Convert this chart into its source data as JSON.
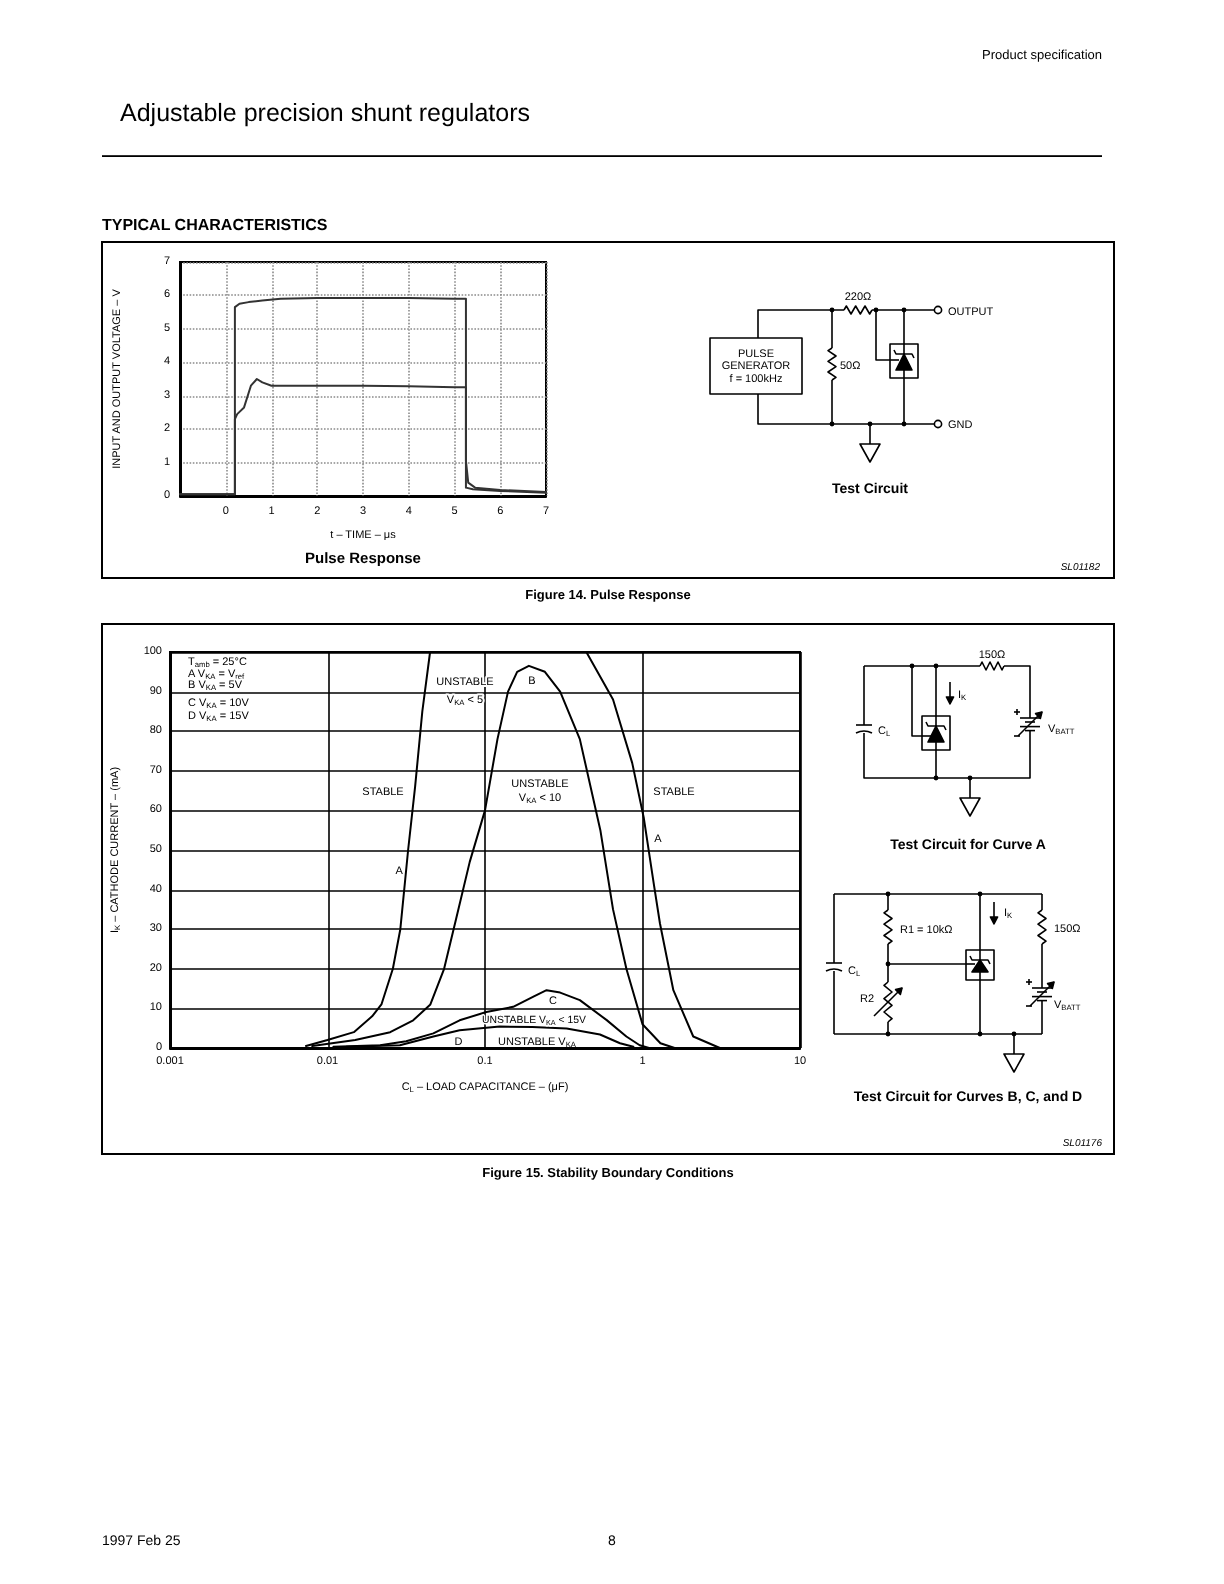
{
  "chart_data": [
    {
      "type": "line",
      "title": "Pulse Response",
      "xlabel": "t – TIME – μs",
      "ylabel": "INPUT AND OUTPUT VOLTAGE – V",
      "xlim": [
        -1,
        7
      ],
      "xticks": [
        0,
        1,
        2,
        3,
        4,
        5,
        6,
        7
      ],
      "ylim": [
        0,
        7
      ],
      "yticks": [
        0,
        1,
        2,
        3,
        4,
        5,
        6,
        7
      ],
      "grid": true,
      "line_style": "solid",
      "series": [
        {
          "color": "#333333",
          "x": [
            -1,
            0.2,
            0.2,
            0.3,
            0.5,
            0.8,
            1.2,
            2,
            3,
            4,
            5,
            5.25,
            5.25,
            5.4,
            6,
            7
          ],
          "values": [
            0.05,
            0.05,
            5.65,
            5.75,
            5.8,
            5.85,
            5.9,
            5.92,
            5.92,
            5.92,
            5.9,
            5.9,
            0.25,
            0.2,
            0.15,
            0.1
          ]
        },
        {
          "color": "#333333",
          "x": [
            -1,
            0.2,
            0.2,
            0.25,
            0.4,
            0.55,
            0.68,
            0.8,
            1,
            2,
            3,
            4,
            5,
            5.25,
            5.25,
            5.3,
            5.45,
            6,
            7
          ],
          "values": [
            0.05,
            0.05,
            2.3,
            2.45,
            2.65,
            3.3,
            3.5,
            3.4,
            3.3,
            3.3,
            3.3,
            3.28,
            3.25,
            3.25,
            1.05,
            0.4,
            0.25,
            0.18,
            0.12
          ]
        }
      ],
      "annotations": [
        "Product specification",
        "Adjustable precision shunt regulators",
        "TYPICAL CHARACTERISTICS",
        "SL01182",
        "Figure 14. Pulse Response"
      ]
    },
    {
      "type": "other",
      "title": "Test Circuit",
      "annotations": [
        "220Ω",
        "OUTPUT",
        "PULSE",
        "GENERATOR",
        "f = 100kHz",
        "50Ω",
        "GND"
      ]
    },
    {
      "type": "line",
      "title": "Figure 15. Stability Boundary Conditions",
      "xlabel": "C$_{L}$ – LOAD CAPACITANCE – (μF)",
      "ylabel": "I$_{K}$ – CATHODE CURRENT – (mA)",
      "log": "x",
      "xlim": [
        0.001,
        10
      ],
      "xticks": [
        0.001,
        0.01,
        0.1,
        1,
        10
      ],
      "ylim": [
        0,
        100
      ],
      "yticks": [
        0,
        10,
        20,
        30,
        40,
        50,
        60,
        70,
        80,
        90,
        100
      ],
      "grid": true,
      "line_style": "solid",
      "series": [
        {
          "color": "#000000",
          "x": [
            0.0073,
            0.01,
            0.0147,
            0.0192,
            0.022,
            0.026,
            0.029,
            0.0325,
            0.036,
            0.04,
            0.0448,
            0.44,
            0.65,
            0.86,
            1.02,
            1.18,
            1.29,
            1.57,
            2.1,
            3.1
          ],
          "values": [
            0.5,
            2,
            4,
            8,
            11,
            20,
            30,
            50,
            66,
            85,
            100,
            100,
            88,
            72,
            58,
            41.4,
            31.5,
            14.6,
            2.9,
            0
          ]
        },
        {
          "color": "#000000",
          "x": [
            0.008,
            0.015,
            0.025,
            0.035,
            0.045,
            0.055,
            0.065,
            0.08,
            0.1,
            0.12,
            0.14,
            0.16,
            0.19,
            0.24,
            0.3,
            0.4,
            0.54,
            0.65,
            0.79,
            1,
            1.3,
            1.6
          ],
          "values": [
            0.5,
            2,
            4,
            7,
            11,
            20,
            32,
            47,
            60,
            78,
            90,
            95,
            96.5,
            95,
            90,
            78,
            55,
            35,
            20,
            6,
            1.2,
            0
          ]
        },
        {
          "color": "#000000",
          "x": [
            0.0109,
            0.0216,
            0.0316,
            0.047,
            0.069,
            0.102,
            0.151,
            0.203,
            0.246,
            0.3,
            0.4,
            0.59,
            0.79,
            0.96,
            1.1
          ],
          "values": [
            0.3,
            0.7,
            1.7,
            3.7,
            7,
            9.1,
            10.4,
            13,
            14.6,
            14,
            12.1,
            7.1,
            2.9,
            0.7,
            0
          ]
        },
        {
          "color": "#000000",
          "x": [
            0.0132,
            0.0288,
            0.047,
            0.069,
            0.124,
            0.2,
            0.33,
            0.537,
            0.72,
            0.875
          ],
          "values": [
            0.3,
            0.7,
            2.9,
            4.5,
            5.4,
            5.3,
            4.9,
            3.4,
            1.2,
            0.3
          ]
        }
      ],
      "annotations": [
        "T$_{amb}$ = 25°C",
        "A V$_{KA}$ = V$_{ref}$",
        "B V$_{KA}$ = 5V",
        "C V$_{KA}$ = 10V",
        "D V$_{KA}$ = 15V",
        "STABLE",
        "UNSTABLE\nV$_{KA}$ < 5",
        "UNSTABLE\nV$_{KA}$ < 10",
        "STABLE",
        "UNSTABLE V$_{KA}$ < 15V",
        "UNSTABLE V$_{KA}$",
        "B",
        "A",
        "A",
        "C",
        "D",
        "SL01176",
        "1997 Feb 25",
        "8"
      ]
    },
    {
      "type": "other",
      "title": "Test Circuit for Curve A",
      "annotations": [
        "150Ω",
        "I$_{K}$",
        "C$_{L}$",
        "V$_{BATT}$"
      ]
    },
    {
      "type": "other",
      "title": "Test Circuit for Curves B, C, and D",
      "annotations": [
        "R1 = 10kΩ",
        "I$_{K}$",
        "150Ω",
        "C$_{L}$",
        "R2",
        "V$_{BATT}$"
      ]
    }
  ]
}
